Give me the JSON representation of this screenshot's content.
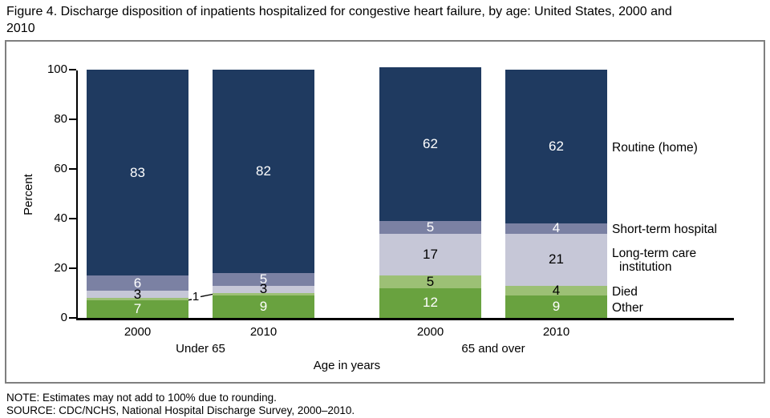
{
  "figure_title": "Figure 4. Discharge disposition of inpatients hospitalized for congestive heart failure, by age: United States, 2000 and\n2010",
  "chart_data": {
    "type": "bar",
    "stacked": true,
    "title": "Figure 4. Discharge disposition of inpatients hospitalized for congestive heart failure, by age: United States, 2000 and 2010",
    "ylabel": "Percent",
    "xlabel": "Age in years",
    "ylim": [
      0,
      100
    ],
    "yticks": [
      0,
      20,
      40,
      60,
      80,
      100
    ],
    "grid": false,
    "legend_position": "right-of-last-bar",
    "bars": [
      {
        "year": "2000",
        "group": "Under 65"
      },
      {
        "year": "2010",
        "group": "Under 65"
      },
      {
        "year": "2000",
        "group": "65 and over"
      },
      {
        "year": "2010",
        "group": "65 and over"
      }
    ],
    "group_labels": [
      "Under 65",
      "65 and over"
    ],
    "series": [
      {
        "name": "Other",
        "color": "#69a23f",
        "label_color": "#ffffff",
        "values": [
          7,
          9,
          12,
          9
        ]
      },
      {
        "name": "Died",
        "color": "#9cc075",
        "label_color": "#000000",
        "values": [
          1,
          1,
          5,
          4
        ]
      },
      {
        "name": "Long-term care institution",
        "color": "#c6c7d7",
        "label_color": "#000000",
        "values": [
          3,
          3,
          17,
          21
        ]
      },
      {
        "name": "Short-term hospital",
        "color": "#7b81a3",
        "label_color": "#ffffff",
        "values": [
          6,
          5,
          5,
          4
        ]
      },
      {
        "name": "Routine (home)",
        "color": "#1f3a60",
        "label_color": "#ffffff",
        "values": [
          83,
          82,
          62,
          62
        ]
      }
    ],
    "legend": [
      {
        "lines": [
          "Routine (home)"
        ]
      },
      {
        "lines": [
          "Short-term hospital"
        ]
      },
      {
        "lines": [
          "Long-term care",
          "institution"
        ]
      },
      {
        "lines": [
          "Died"
        ]
      },
      {
        "lines": [
          "Other"
        ]
      }
    ],
    "callout": {
      "text": "1",
      "refers_to": "Died segment value for both Under 65 bars"
    }
  },
  "notes": {
    "note": "NOTE: Estimates may not add to 100% due to rounding.",
    "source": "SOURCE: CDC/NCHS, National Hospital Discharge Survey, 2000–2010."
  }
}
